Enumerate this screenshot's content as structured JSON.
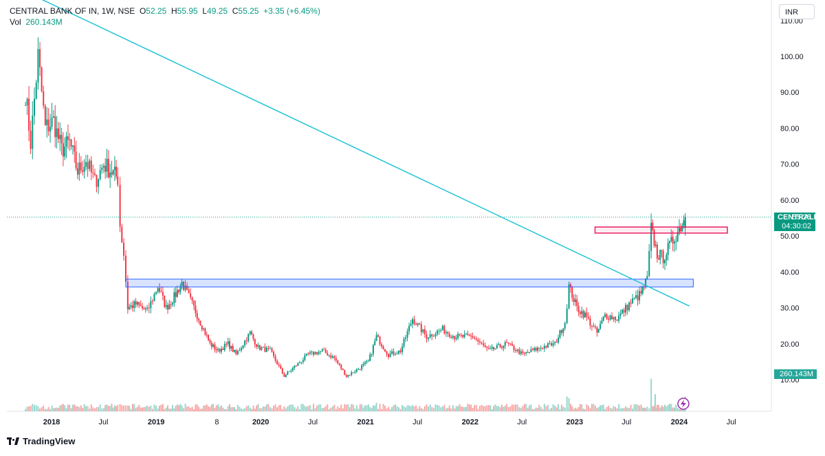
{
  "header": {
    "symbol": "CENTRAL BANK OF IN, 1W, NSE",
    "o_label": "O",
    "o_value": "52.25",
    "h_label": "H",
    "h_value": "55.95",
    "l_label": "L",
    "l_value": "49.25",
    "c_label": "C",
    "c_value": "55.25",
    "change": "+3.35 (+6.45%)",
    "vol_label": "Vol",
    "vol_value": "260.143M"
  },
  "currency_button": "INR",
  "price_badge": {
    "symbol": "CENTRALBK",
    "price": "55.25",
    "countdown": "04:30:02"
  },
  "volume_badge": "260.143M",
  "branding": "TradingView",
  "colors": {
    "up": "#089981",
    "down": "#f23645",
    "trendline": "#22c3d6",
    "support_zone": "#2962ff",
    "resistance_zone": "#e91e63",
    "badge_bg": "#089981"
  },
  "chart_data": {
    "type": "candlestick",
    "title": "CENTRAL BANK OF IN, 1W, NSE",
    "y_ticks": [
      "10.00",
      "20.00",
      "30.00",
      "40.00",
      "50.00",
      "60.00",
      "70.00",
      "80.00",
      "90.00",
      "100.00",
      "110.00"
    ],
    "x_ticks": [
      "2018",
      "Jul",
      "2019",
      "8",
      "2020",
      "Jul",
      "2021",
      "Jul",
      "2022",
      "Jul",
      "2023",
      "Jul",
      "2024",
      "Jul"
    ],
    "last_close": 55.25,
    "last_volume_millions": 260.143,
    "price_path": [
      [
        "2017-10-02",
        90
      ],
      [
        "2017-10-20",
        76
      ],
      [
        "2017-11-15",
        100
      ],
      [
        "2017-12-10",
        80
      ],
      [
        "2018-01-08",
        82
      ],
      [
        "2018-02-05",
        74
      ],
      [
        "2018-03-05",
        76
      ],
      [
        "2018-04-02",
        68
      ],
      [
        "2018-05-01",
        71
      ],
      [
        "2018-06-01",
        65
      ],
      [
        "2018-07-02",
        70
      ],
      [
        "2018-07-30",
        68
      ],
      [
        "2018-08-20",
        66
      ],
      [
        "2018-08-28",
        53
      ],
      [
        "2018-09-10",
        45
      ],
      [
        "2018-09-24",
        30
      ],
      [
        "2018-10-22",
        31
      ],
      [
        "2018-12-01",
        29
      ],
      [
        "2019-01-07",
        36
      ],
      [
        "2019-02-05",
        30
      ],
      [
        "2019-03-05",
        33
      ],
      [
        "2019-04-01",
        37
      ],
      [
        "2019-05-13",
        30
      ],
      [
        "2019-06-10",
        25
      ],
      [
        "2019-07-08",
        20
      ],
      [
        "2019-08-05",
        18
      ],
      [
        "2019-09-09",
        20
      ],
      [
        "2019-10-07",
        17
      ],
      [
        "2019-11-25",
        23
      ],
      [
        "2019-12-23",
        19
      ],
      [
        "2020-02-03",
        18
      ],
      [
        "2020-03-23",
        11
      ],
      [
        "2020-05-04",
        14
      ],
      [
        "2020-06-15",
        17
      ],
      [
        "2020-08-03",
        18
      ],
      [
        "2020-09-14",
        16
      ],
      [
        "2020-10-26",
        11
      ],
      [
        "2020-12-07",
        13
      ],
      [
        "2021-01-11",
        15
      ],
      [
        "2021-02-08",
        22
      ],
      [
        "2021-03-22",
        17
      ],
      [
        "2021-05-03",
        18
      ],
      [
        "2021-06-14",
        27
      ],
      [
        "2021-08-02",
        22
      ],
      [
        "2021-09-27",
        24
      ],
      [
        "2021-11-08",
        22
      ],
      [
        "2022-01-10",
        22
      ],
      [
        "2022-03-07",
        18
      ],
      [
        "2022-05-09",
        20
      ],
      [
        "2022-07-04",
        17
      ],
      [
        "2022-09-05",
        19
      ],
      [
        "2022-10-24",
        20
      ],
      [
        "2022-11-28",
        26
      ],
      [
        "2022-12-12",
        36
      ],
      [
        "2023-01-09",
        30
      ],
      [
        "2023-02-06",
        28
      ],
      [
        "2023-03-20",
        23
      ],
      [
        "2023-04-17",
        28
      ],
      [
        "2023-05-29",
        27
      ],
      [
        "2023-07-10",
        31
      ],
      [
        "2023-08-21",
        34
      ],
      [
        "2023-09-11",
        38
      ],
      [
        "2023-09-25",
        52
      ],
      [
        "2023-10-16",
        45
      ],
      [
        "2023-11-06",
        44
      ],
      [
        "2023-12-04",
        48
      ],
      [
        "2024-01-01",
        52
      ],
      [
        "2024-01-22",
        55.25
      ]
    ],
    "volume_spikes_millions": [
      [
        "2021-02-08",
        150
      ],
      [
        "2021-06-14",
        110
      ],
      [
        "2022-12-05",
        260
      ],
      [
        "2022-12-12",
        230
      ],
      [
        "2023-09-25",
        570
      ],
      [
        "2023-10-09",
        300
      ],
      [
        "2024-01-22",
        260.143
      ]
    ],
    "trendline": [
      [
        "2017-10-02",
        118
      ],
      [
        "2024-02-05",
        30.5
      ]
    ],
    "support_zone": {
      "from": "2018-09-17",
      "to": "2024-07-01",
      "low": 36.2,
      "high": 37.6
    },
    "resistance_zone": {
      "from": "2023-03-13",
      "to": "2024-07-01",
      "low": 51.0,
      "high": 52.3
    },
    "grid": false
  }
}
